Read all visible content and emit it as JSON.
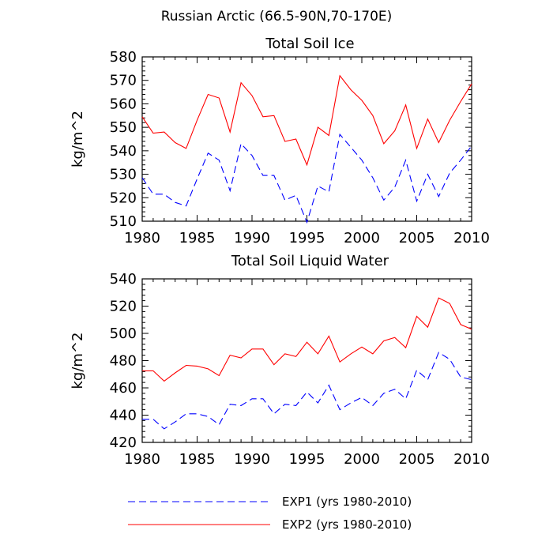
{
  "figure_title": "Russian Arctic (66.5-90N,70-170E)",
  "legend": [
    {
      "label": "EXP1 (yrs 1980-2010)",
      "color": "#0000ff",
      "dash": true
    },
    {
      "label": "EXP2 (yrs 1980-2010)",
      "color": "#ff0000",
      "dash": false
    }
  ],
  "chart_data": [
    {
      "type": "line",
      "title": "Total Soil Ice",
      "xlabel": "",
      "ylabel": "kg/m^2",
      "xlim": [
        1980,
        2010
      ],
      "ylim": [
        510,
        580
      ],
      "xticks": [
        1980,
        1985,
        1990,
        1995,
        2000,
        2005,
        2010
      ],
      "yticks": [
        510,
        520,
        530,
        540,
        550,
        560,
        570,
        580
      ],
      "x": [
        1980,
        1981,
        1982,
        1983,
        1984,
        1985,
        1986,
        1987,
        1988,
        1989,
        1990,
        1991,
        1992,
        1993,
        1994,
        1995,
        1996,
        1997,
        1998,
        1999,
        2000,
        2001,
        2002,
        2003,
        2004,
        2005,
        2006,
        2007,
        2008,
        2009,
        2010
      ],
      "series": [
        {
          "name": "EXP1 (yrs 1980-2010)",
          "color": "#0000ff",
          "dash": true,
          "values": [
            528.5,
            521.5,
            521.5,
            518,
            516.5,
            528,
            539,
            536,
            523,
            543,
            538,
            529.5,
            529.5,
            519,
            521,
            509.5,
            525,
            522.5,
            547,
            541.5,
            536,
            528.5,
            519,
            524.5,
            536,
            518.5,
            530,
            520.5,
            530.5,
            536,
            542
          ]
        },
        {
          "name": "EXP2 (yrs 1980-2010)",
          "color": "#ff0000",
          "dash": false,
          "values": [
            554.5,
            547.5,
            548,
            543.5,
            541,
            553,
            564,
            562.5,
            548,
            569,
            563.5,
            554.5,
            555,
            544,
            545,
            534,
            550,
            546.5,
            572,
            566,
            561.5,
            555,
            543,
            548.5,
            559.5,
            541,
            553.5,
            543.5,
            553,
            561,
            568.5
          ]
        }
      ]
    },
    {
      "type": "line",
      "title": "Total Soil Liquid Water",
      "xlabel": "",
      "ylabel": "kg/m^2",
      "xlim": [
        1980,
        2010
      ],
      "ylim": [
        420,
        540
      ],
      "xticks": [
        1980,
        1985,
        1990,
        1995,
        2000,
        2005,
        2010
      ],
      "yticks": [
        420,
        440,
        460,
        480,
        500,
        520,
        540
      ],
      "x": [
        1980,
        1981,
        1982,
        1983,
        1984,
        1985,
        1986,
        1987,
        1988,
        1989,
        1990,
        1991,
        1992,
        1993,
        1994,
        1995,
        1996,
        1997,
        1998,
        1999,
        2000,
        2001,
        2002,
        2003,
        2004,
        2005,
        2006,
        2007,
        2008,
        2009,
        2010
      ],
      "series": [
        {
          "name": "EXP1 (yrs 1980-2010)",
          "color": "#0000ff",
          "dash": true,
          "values": [
            437,
            437,
            430,
            435,
            441,
            441,
            439,
            433,
            448,
            447,
            452,
            452,
            441,
            448,
            447,
            457,
            449,
            462,
            444,
            449,
            453,
            447,
            456,
            459,
            452,
            473,
            466,
            486,
            481,
            468,
            466
          ]
        },
        {
          "name": "EXP2 (yrs 1980-2010)",
          "color": "#ff0000",
          "dash": false,
          "values": [
            472.5,
            472.5,
            465,
            471,
            476.5,
            476,
            474,
            469,
            484,
            482,
            488.5,
            488.5,
            477,
            485,
            483,
            493.5,
            485,
            498,
            479,
            485,
            490,
            485,
            494.5,
            497,
            489.5,
            512.5,
            504.5,
            526,
            522,
            506.5,
            503
          ]
        }
      ]
    }
  ]
}
